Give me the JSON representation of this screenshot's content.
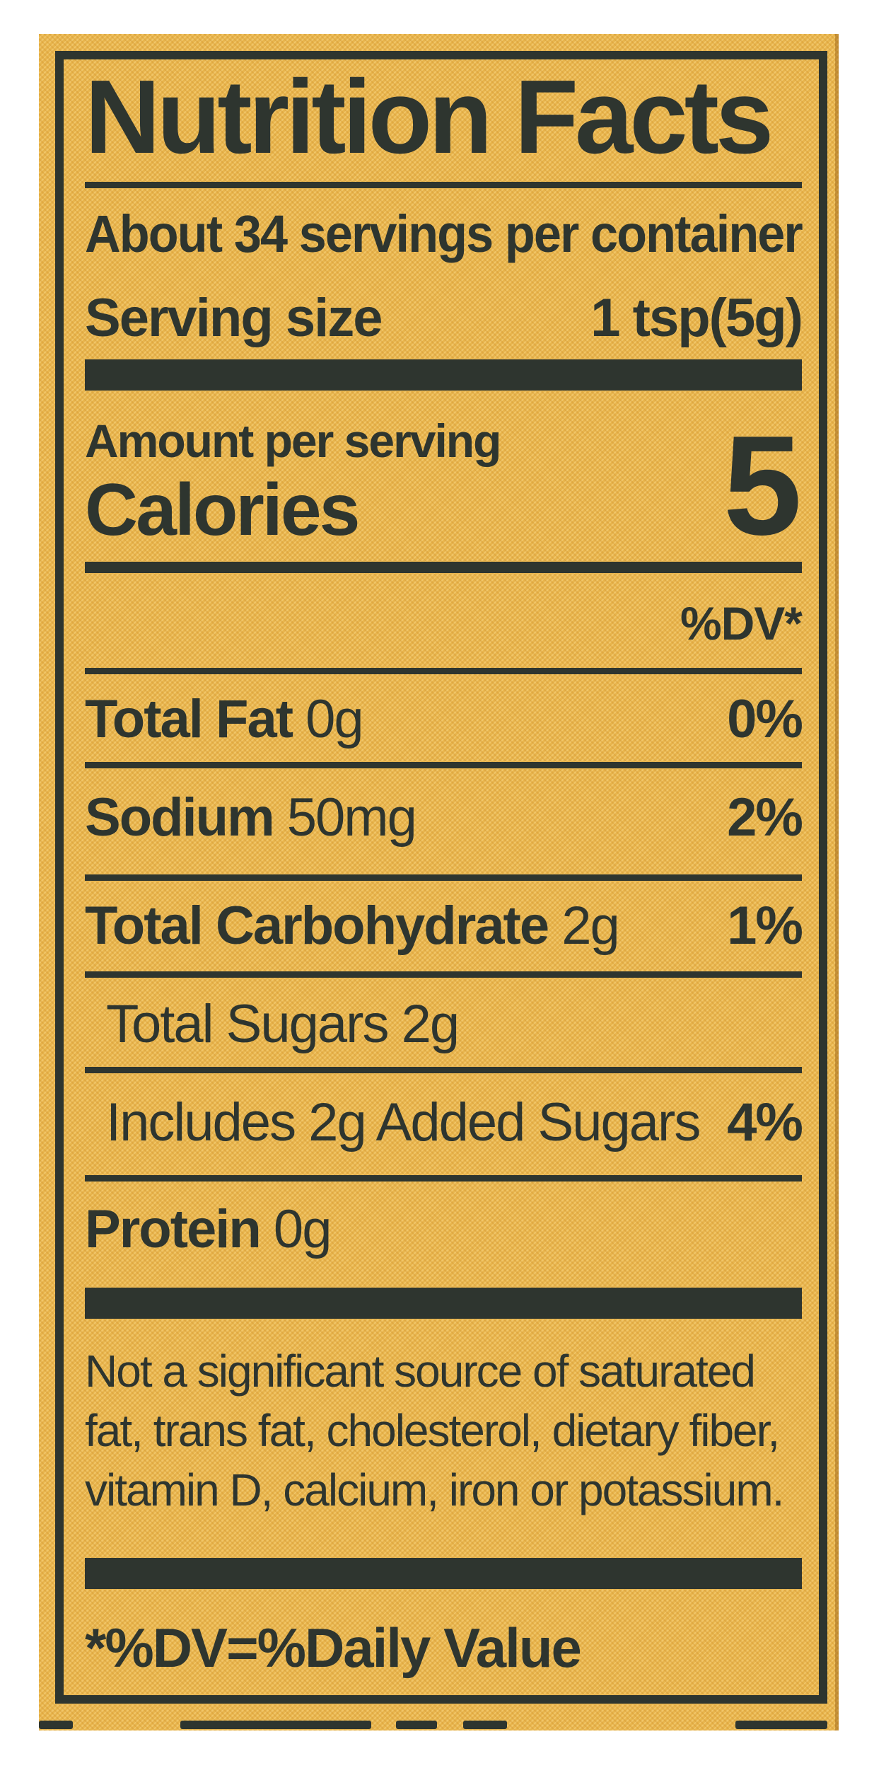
{
  "nutrition_label": {
    "title": "Nutrition Facts",
    "servings_per_container": "About 34 servings per container",
    "serving_size": {
      "label": "Serving size",
      "value": "1 tsp(5g)"
    },
    "amount_per_serving": "Amount per serving",
    "calories": {
      "label": "Calories",
      "value": "5"
    },
    "daily_value_header": "%DV*",
    "rows": [
      {
        "bold": "Total Fat",
        "rest": " 0g",
        "dv": "0%"
      },
      {
        "bold": "Sodium",
        "rest": " 50mg",
        "dv": "2%"
      },
      {
        "bold": "Total Carbohydrate",
        "rest": " 2g",
        "dv": "1%"
      },
      {
        "bold": "",
        "rest": "Total Sugars 2g",
        "dv": ""
      },
      {
        "bold": "",
        "rest": "Includes 2g Added Sugars",
        "dv": "4%"
      },
      {
        "bold": "Protein",
        "rest": " 0g",
        "dv": ""
      }
    ],
    "footnote_lines": [
      "Not a significant source of saturated",
      "fat, trans fat, cholesterol, dietary fiber,",
      "vitamin D, calcium, iron or potassium."
    ],
    "daily_value_note": "*%DV=%Daily Value"
  },
  "colors": {
    "label_background": "#e8b54d",
    "ink": "#2e352f",
    "page_background": "#ffffff"
  }
}
